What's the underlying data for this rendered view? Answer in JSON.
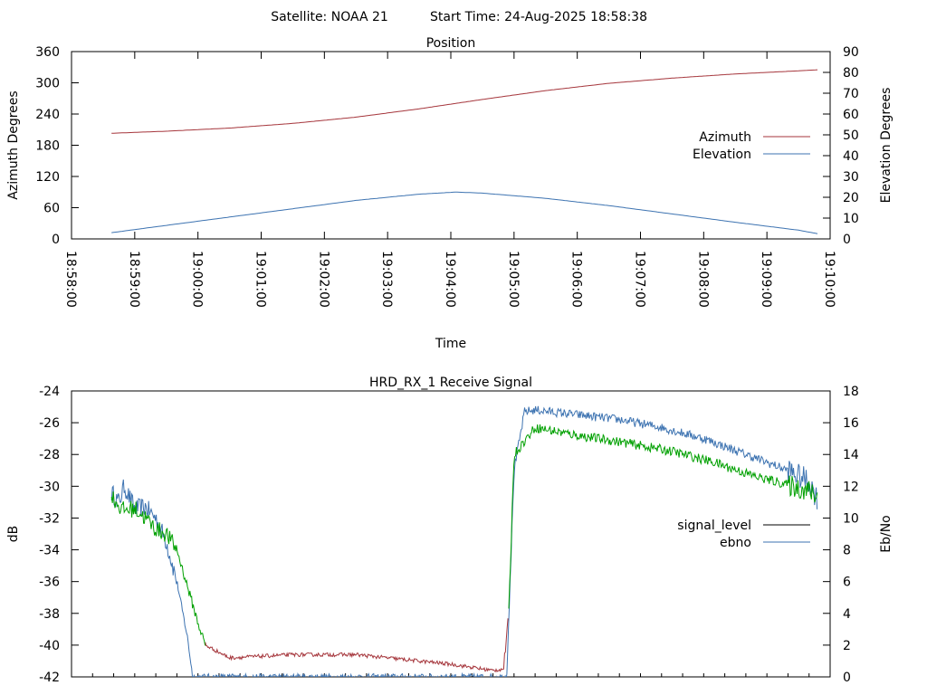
{
  "header": {
    "satellite": "Satellite: NOAA 21",
    "start_time": "Start Time: 24-Aug-2025 18:58:38"
  },
  "colors": {
    "azimuth": "#a5353b",
    "elevation": "#3d73b1",
    "signal_level": "#000000",
    "ebno": "#3d73b1",
    "signal_low": "#a5353b",
    "signal_high": "#00a000"
  },
  "chart_data": [
    {
      "type": "line",
      "title": "Position",
      "xlabel": "Time",
      "ylabel": "Azimuth Degrees",
      "y2label": "Elevation Degrees",
      "ylim": [
        0,
        360
      ],
      "y2lim": [
        0,
        90
      ],
      "yticks": [
        "0",
        "60",
        "120",
        "180",
        "240",
        "300",
        "360"
      ],
      "y2ticks": [
        "0",
        "10",
        "20",
        "30",
        "40",
        "50",
        "60",
        "70",
        "80",
        "90"
      ],
      "xlim": [
        "18:58:00",
        "19:10:00"
      ],
      "xticks": [
        "18:58:00",
        "18:59:00",
        "19:00:00",
        "19:01:00",
        "19:02:00",
        "19:03:00",
        "19:04:00",
        "19:05:00",
        "19:06:00",
        "19:07:00",
        "19:08:00",
        "19:09:00",
        "19:10:00"
      ],
      "grid": false,
      "legend": "right",
      "series": [
        {
          "name": "Azimuth",
          "axis": "left",
          "x": [
            "18:58:38",
            "18:59:30",
            "19:00:30",
            "19:01:30",
            "19:02:30",
            "19:03:30",
            "19:04:30",
            "19:05:30",
            "19:06:30",
            "19:07:30",
            "19:08:30",
            "19:09:30",
            "19:09:48"
          ],
          "values": [
            203,
            207,
            213,
            222,
            234,
            250,
            268,
            285,
            299,
            309,
            317,
            323,
            325
          ]
        },
        {
          "name": "Elevation",
          "axis": "right",
          "x": [
            "18:58:38",
            "18:59:30",
            "19:00:30",
            "19:01:30",
            "19:02:30",
            "19:03:30",
            "19:04:05",
            "19:04:30",
            "19:05:30",
            "19:06:30",
            "19:07:30",
            "19:08:30",
            "19:09:30",
            "19:09:48"
          ],
          "values": [
            3,
            6.5,
            10.5,
            14.5,
            18.5,
            21.5,
            22.5,
            22,
            19.5,
            16,
            12,
            8,
            4.2,
            2.5
          ]
        }
      ]
    },
    {
      "type": "line",
      "title": "HRD_RX_1 Receive Signal",
      "ylabel": "dB",
      "y2label": "Eb/No",
      "ylim": [
        -42,
        -24
      ],
      "y2lim": [
        0,
        18
      ],
      "yticks": [
        "-42",
        "-40",
        "-38",
        "-36",
        "-34",
        "-32",
        "-30",
        "-28",
        "-26",
        "-24"
      ],
      "y2ticks": [
        "0",
        "2",
        "4",
        "6",
        "8",
        "10",
        "12",
        "14",
        "16",
        "18"
      ],
      "xlim": [
        "18:58:00",
        "19:10:00"
      ],
      "grid": false,
      "legend": "right",
      "series": [
        {
          "name": "signal_level",
          "axis": "left",
          "x": [
            "18:58:38",
            "18:58:48",
            "18:59:00",
            "18:59:10",
            "18:59:20",
            "18:59:30",
            "18:59:40",
            "18:59:50",
            "19:00:00",
            "19:00:07",
            "19:00:30",
            "19:01:30",
            "19:02:30",
            "19:03:00",
            "19:03:30",
            "19:04:00",
            "19:04:40",
            "19:04:50",
            "19:04:55",
            "19:05:00",
            "19:05:20",
            "19:06:00",
            "19:06:40",
            "19:07:30",
            "19:08:10",
            "19:08:50",
            "19:09:20",
            "19:09:40",
            "19:09:48"
          ],
          "values": [
            -30.6,
            -31.5,
            -31.4,
            -32,
            -32.7,
            -33,
            -34,
            -36.3,
            -38.6,
            -40,
            -40.8,
            -40.6,
            -40.6,
            -40.8,
            -41,
            -41.2,
            -41.6,
            -41.5,
            -38,
            -28,
            -26.3,
            -26.8,
            -27.2,
            -27.8,
            -28.5,
            -29.4,
            -29.9,
            -30.3,
            -30.7
          ]
        },
        {
          "name": "ebno",
          "axis": "right",
          "x": [
            "18:58:38",
            "18:58:45",
            "18:58:50",
            "18:59:00",
            "18:59:10",
            "18:59:20",
            "18:59:30",
            "18:59:40",
            "18:59:50",
            "18:59:55",
            "19:04:53",
            "19:05:00",
            "19:05:10",
            "19:05:20",
            "19:06:00",
            "19:06:40",
            "19:07:20",
            "19:08:00",
            "19:08:40",
            "19:09:20",
            "19:09:40",
            "19:09:48"
          ],
          "values": [
            11.6,
            11,
            12,
            10.6,
            10.7,
            10,
            8.5,
            6,
            2.5,
            0,
            0,
            13,
            16.7,
            16.8,
            16.5,
            16.2,
            15.7,
            15,
            14,
            13,
            12.3,
            11.2
          ]
        }
      ]
    }
  ]
}
